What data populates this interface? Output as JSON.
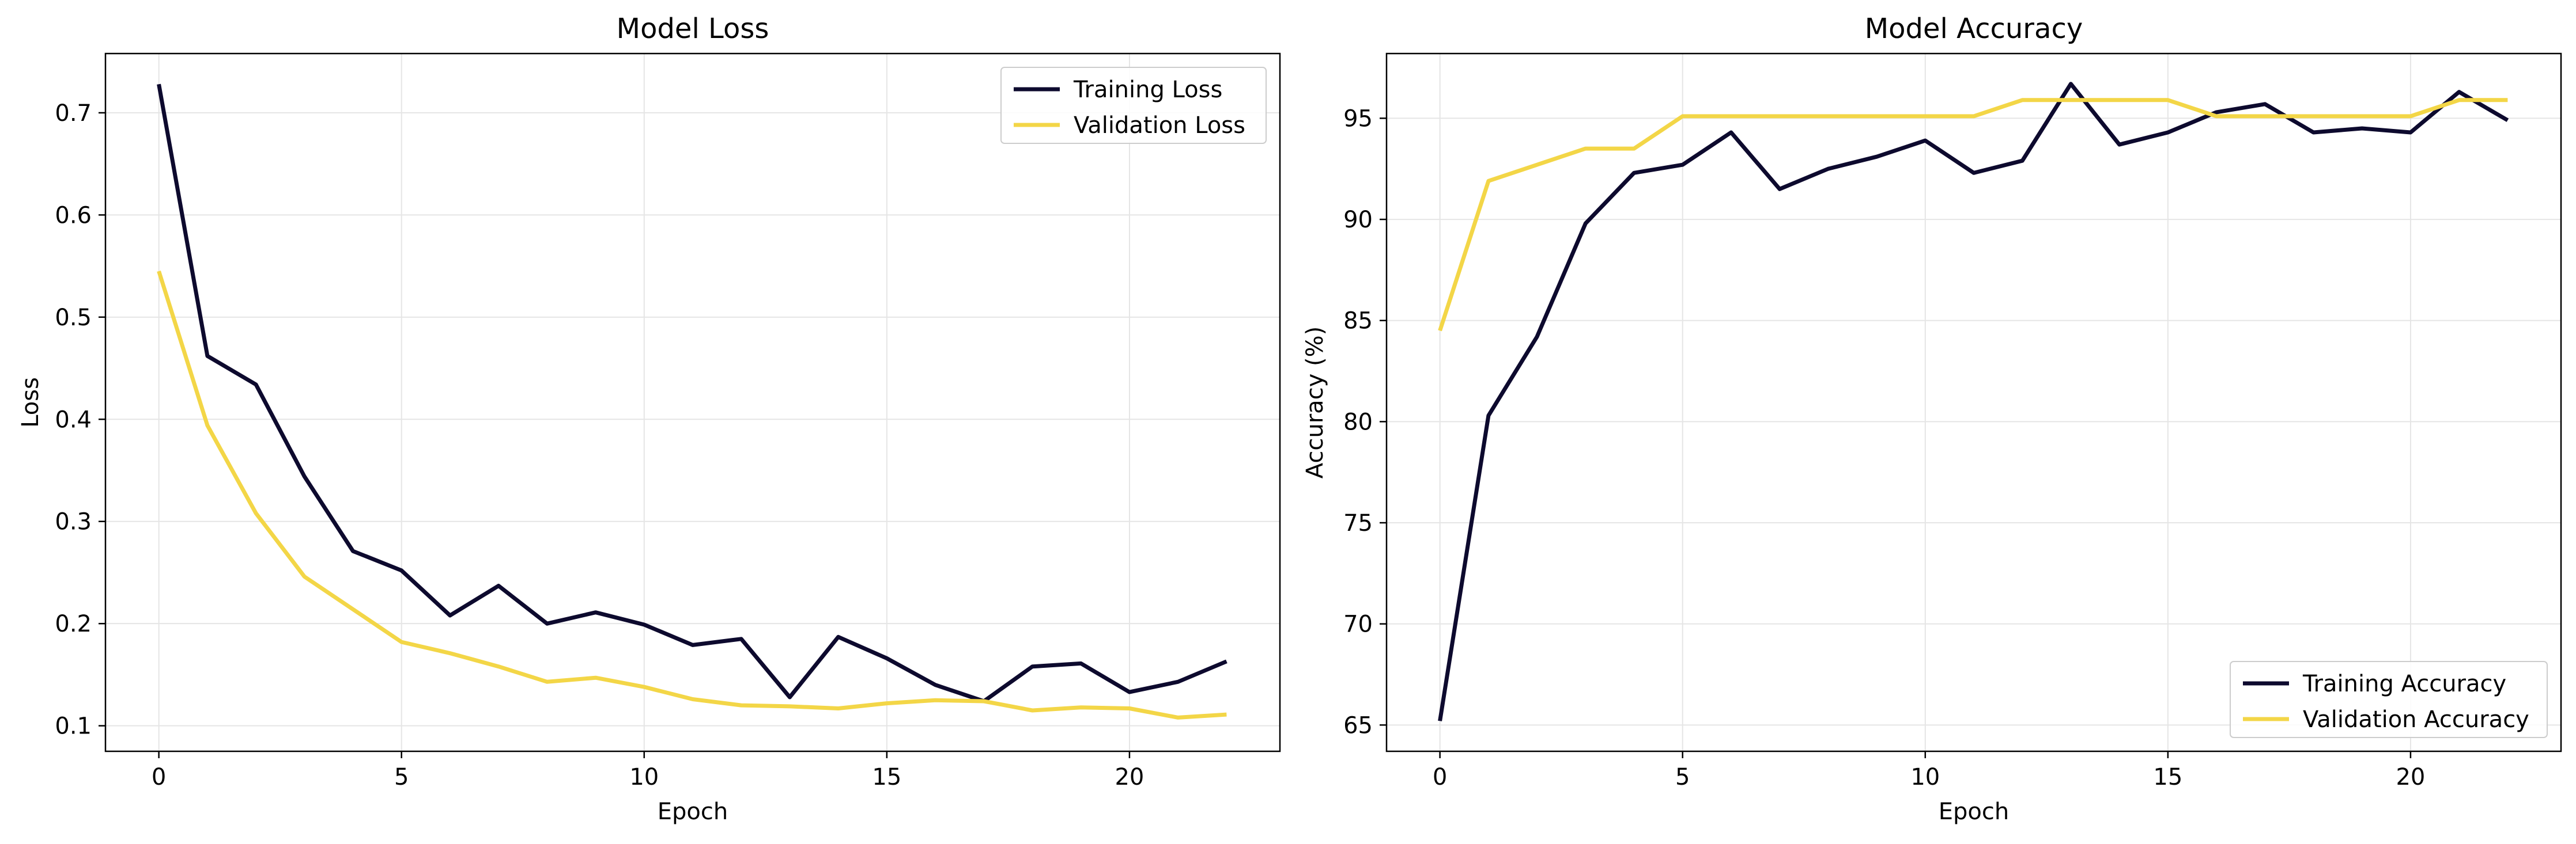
{
  "chart_data": [
    {
      "type": "line",
      "title": "Model Loss",
      "xlabel": "Epoch",
      "ylabel": "Loss",
      "xlim": [
        -1.1,
        23.1
      ],
      "ylim": [
        0.075,
        0.758
      ],
      "xticks": [
        0,
        5,
        10,
        15,
        20
      ],
      "yticks": [
        0.1,
        0.2,
        0.3,
        0.4,
        0.5,
        0.6,
        0.7
      ],
      "tick_decimals": 1,
      "grid": true,
      "legend_position": "top-right",
      "x": [
        0,
        1,
        2,
        3,
        4,
        5,
        6,
        7,
        8,
        9,
        10,
        11,
        12,
        13,
        14,
        15,
        16,
        17,
        18,
        19,
        20,
        21,
        22
      ],
      "series": [
        {
          "name": "Training Loss",
          "color": "#0d0a2e",
          "values": [
            0.728,
            0.462,
            0.434,
            0.344,
            0.271,
            0.252,
            0.208,
            0.237,
            0.2,
            0.211,
            0.199,
            0.179,
            0.185,
            0.128,
            0.187,
            0.166,
            0.14,
            0.124,
            0.158,
            0.161,
            0.133,
            0.143,
            0.163
          ]
        },
        {
          "name": "Validation Loss",
          "color": "#f3d647",
          "values": [
            0.545,
            0.394,
            0.308,
            0.246,
            0.214,
            0.182,
            0.171,
            0.158,
            0.143,
            0.147,
            0.138,
            0.126,
            0.12,
            0.119,
            0.117,
            0.122,
            0.125,
            0.124,
            0.115,
            0.118,
            0.117,
            0.108,
            0.111
          ]
        }
      ]
    },
    {
      "type": "line",
      "title": "Model Accuracy",
      "xlabel": "Epoch",
      "ylabel": "Accuracy (%)",
      "xlim": [
        -1.1,
        23.1
      ],
      "ylim": [
        63.7,
        98.2
      ],
      "xticks": [
        0,
        5,
        10,
        15,
        20
      ],
      "yticks": [
        65,
        70,
        75,
        80,
        85,
        90,
        95
      ],
      "tick_decimals": 0,
      "grid": true,
      "legend_position": "bottom-right",
      "x": [
        0,
        1,
        2,
        3,
        4,
        5,
        6,
        7,
        8,
        9,
        10,
        11,
        12,
        13,
        14,
        15,
        16,
        17,
        18,
        19,
        20,
        21,
        22
      ],
      "series": [
        {
          "name": "Training Accuracy",
          "color": "#0d0a2e",
          "values": [
            65.2,
            80.3,
            84.2,
            89.8,
            92.3,
            92.7,
            94.3,
            91.5,
            92.5,
            93.1,
            93.9,
            92.3,
            92.9,
            96.7,
            93.7,
            94.3,
            95.3,
            95.7,
            94.3,
            94.5,
            94.3,
            96.3,
            94.9
          ]
        },
        {
          "name": "Validation Accuracy",
          "color": "#f3d647",
          "values": [
            84.5,
            91.9,
            92.7,
            93.5,
            93.5,
            95.1,
            95.1,
            95.1,
            95.1,
            95.1,
            95.1,
            95.1,
            95.9,
            95.9,
            95.9,
            95.9,
            95.1,
            95.1,
            95.1,
            95.1,
            95.1,
            95.9,
            95.9
          ]
        }
      ]
    }
  ]
}
